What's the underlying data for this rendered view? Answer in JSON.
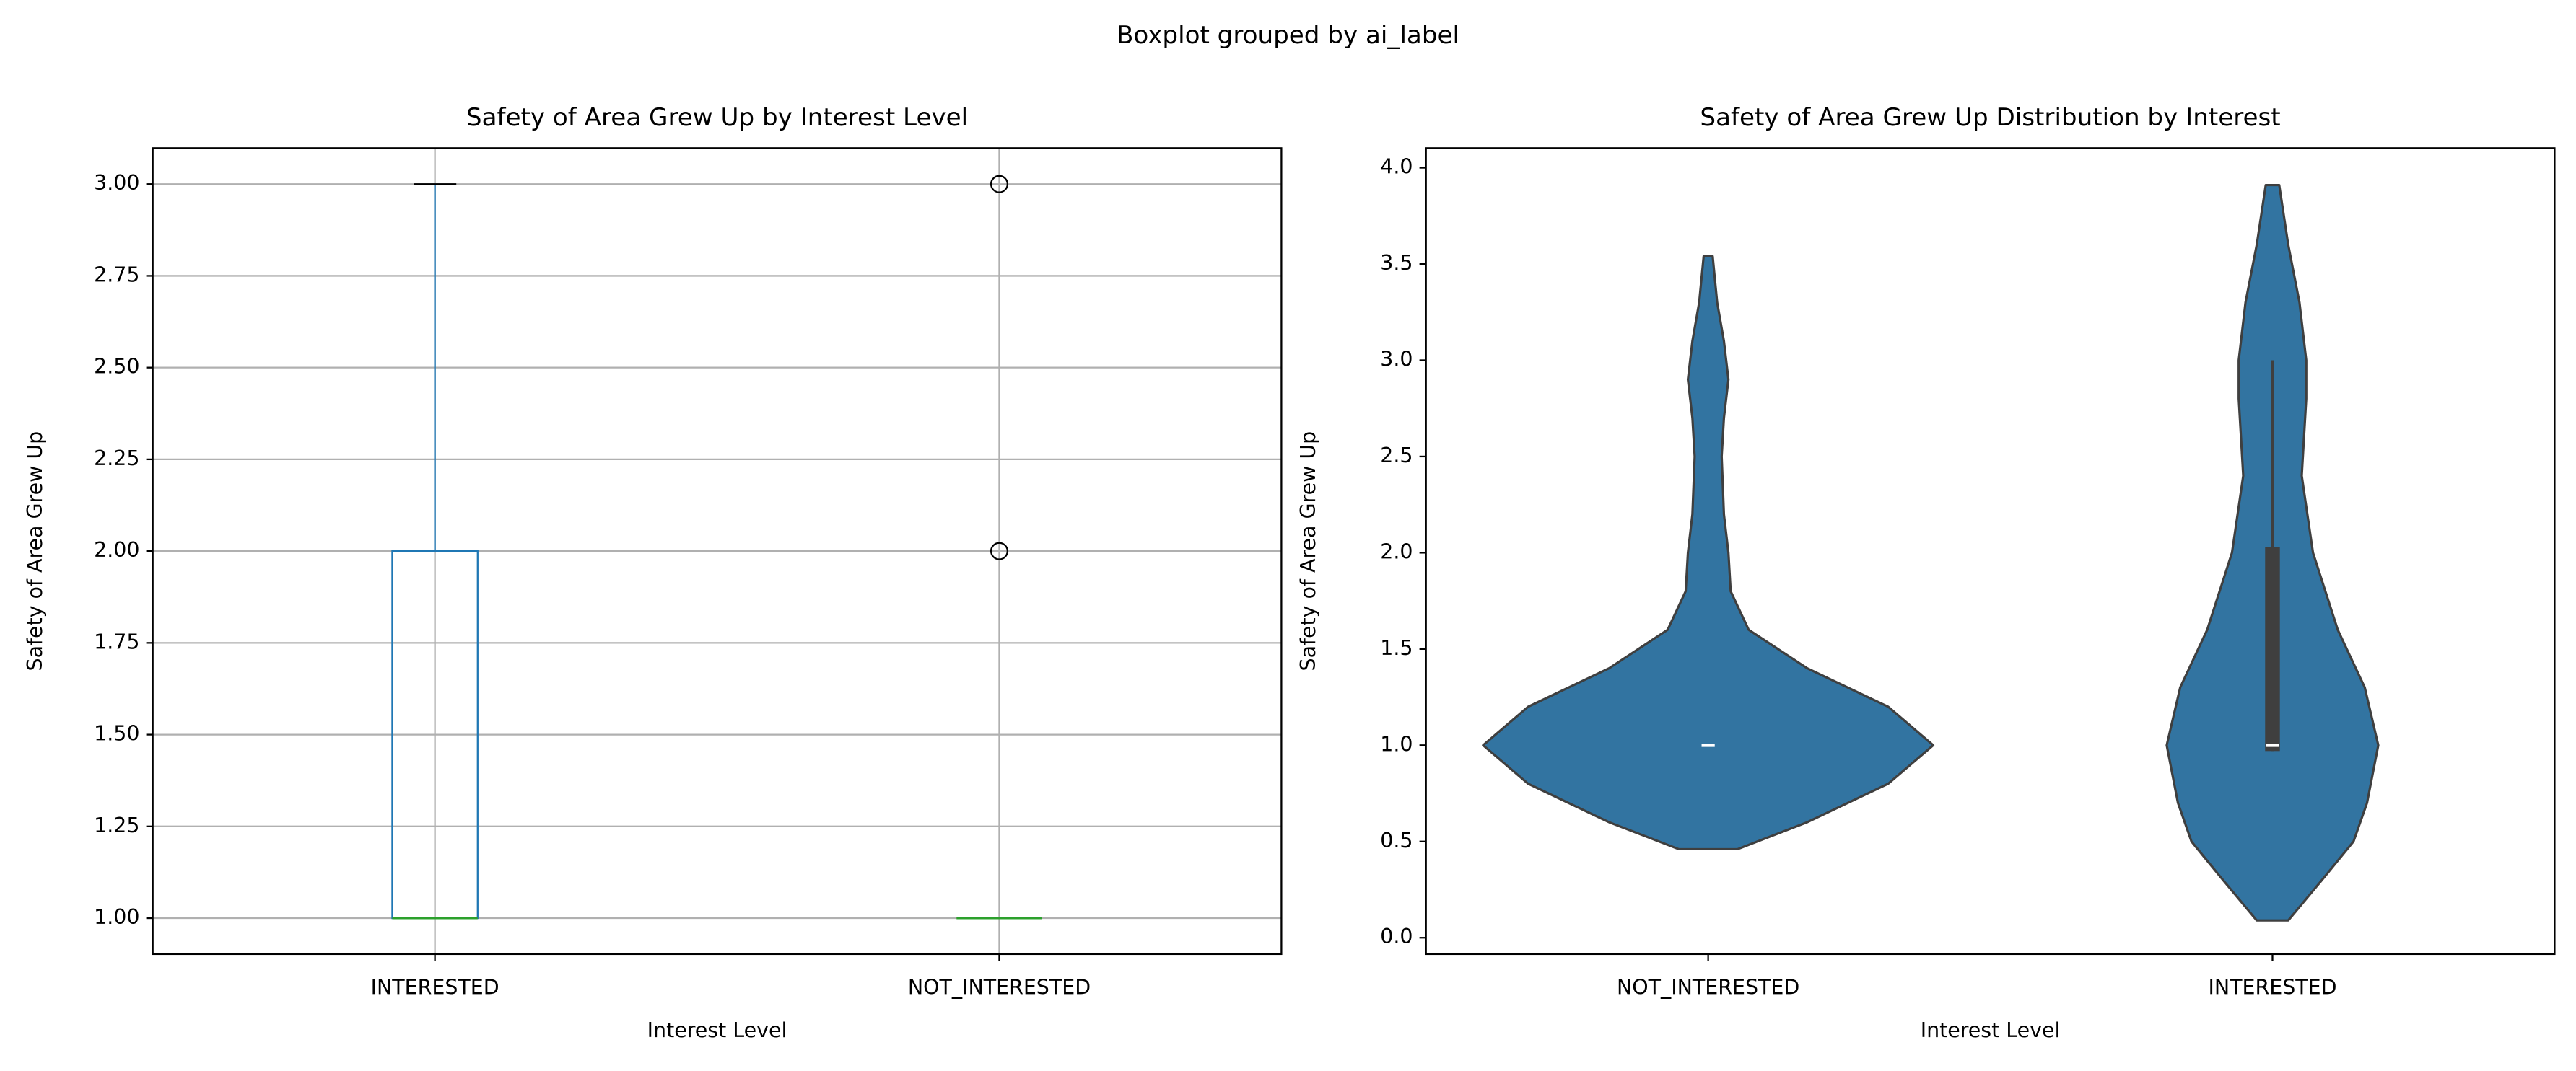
{
  "title": "Boxplot grouped by ai_label",
  "chart_data": [
    {
      "type": "box",
      "title": "Safety of Area Grew Up by Interest Level",
      "xlabel": "Interest Level",
      "ylabel": "Safety of Area Grew Up",
      "categories": [
        "INTERESTED",
        "NOT_INTERESTED"
      ],
      "boxes": [
        {
          "min": 1,
          "q1": 1,
          "median": 1,
          "q3": 2,
          "max": 3,
          "outliers": []
        },
        {
          "min": 1,
          "q1": 1,
          "median": 1,
          "q3": 1,
          "max": 1,
          "outliers": [
            2,
            3
          ]
        }
      ],
      "color": "#1f77b4",
      "median_color": "#2ca02c",
      "grid": true,
      "ylim": [
        0.902,
        3.098
      ],
      "yticks": [
        {
          "value": 1,
          "label": "1.00"
        },
        {
          "value": 1.25,
          "label": "1.25"
        },
        {
          "value": 1.5,
          "label": "1.50"
        },
        {
          "value": 1.75,
          "label": "1.75"
        },
        {
          "value": 2,
          "label": "2.00"
        },
        {
          "value": 2.25,
          "label": "2.25"
        },
        {
          "value": 2.5,
          "label": "2.50"
        },
        {
          "value": 2.75,
          "label": "2.75"
        },
        {
          "value": 3,
          "label": "3.00"
        }
      ]
    },
    {
      "type": "violin",
      "title": "Safety of Area Grew Up Distribution by Interest",
      "xlabel": "Interest Level",
      "ylabel": "Safety of Area Grew Up",
      "categories": [
        "NOT_INTERESTED",
        "INTERESTED"
      ],
      "violins": [
        {
          "y": [
            0.46,
            0.6,
            0.8,
            1.0,
            1.2,
            1.4,
            1.6,
            1.8,
            2.0,
            2.2,
            2.5,
            2.7,
            2.9,
            3.1,
            3.3,
            3.54
          ],
          "density": [
            0.13,
            0.44,
            0.8,
            1,
            0.8,
            0.44,
            0.18,
            0.1,
            0.09,
            0.07,
            0.06,
            0.07,
            0.09,
            0.07,
            0.04,
            0.02
          ],
          "q1": 1,
          "median": 1,
          "q3": 1,
          "whisker_low": 1,
          "whisker_high": 1
        },
        {
          "y": [
            0.09,
            0.3,
            0.5,
            0.7,
            1.0,
            1.3,
            1.6,
            2.0,
            2.4,
            2.8,
            3.0,
            3.3,
            3.6,
            3.91
          ],
          "density": [
            0.07,
            0.22,
            0.36,
            0.42,
            0.47,
            0.41,
            0.29,
            0.18,
            0.13,
            0.15,
            0.15,
            0.12,
            0.07,
            0.03
          ],
          "q1": 0.97,
          "median": 1,
          "q3": 2.03,
          "whisker_low": 0.97,
          "whisker_high": 3
        }
      ],
      "color": "#3274a1",
      "edge_color": "#3f3f3f",
      "grid": false,
      "ylim": [
        -0.085,
        4.102
      ],
      "yticks": [
        {
          "value": 0,
          "label": "0.0"
        },
        {
          "value": 0.5,
          "label": "0.5"
        },
        {
          "value": 1,
          "label": "1.0"
        },
        {
          "value": 1.5,
          "label": "1.5"
        },
        {
          "value": 2,
          "label": "2.0"
        },
        {
          "value": 2.5,
          "label": "2.5"
        },
        {
          "value": 3,
          "label": "3.0"
        },
        {
          "value": 3.5,
          "label": "3.5"
        },
        {
          "value": 4,
          "label": "4.0"
        }
      ]
    }
  ]
}
